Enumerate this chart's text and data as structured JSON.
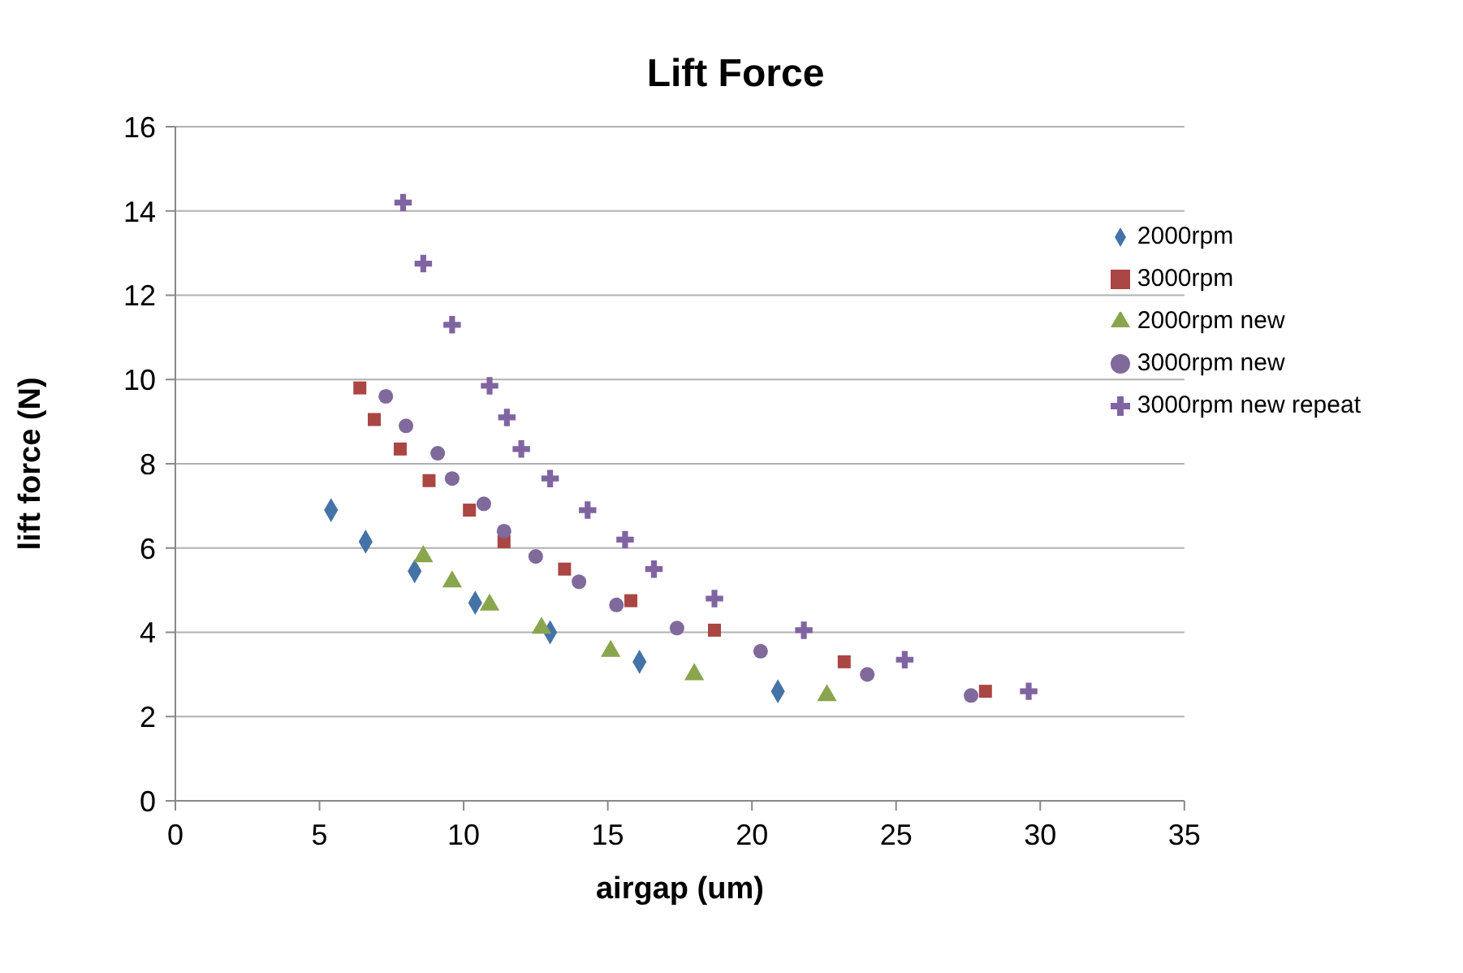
{
  "chart_data": {
    "type": "scatter",
    "title": "Lift Force",
    "xlabel": "airgap (um)",
    "ylabel": "lift force (N)",
    "xlim": [
      0,
      35
    ],
    "xticks": [
      0,
      5,
      10,
      15,
      20,
      25,
      30,
      35
    ],
    "ylim": [
      0,
      16
    ],
    "yticks": [
      0,
      2,
      4,
      6,
      8,
      10,
      12,
      14,
      16
    ],
    "grid": "y",
    "legend": "top right",
    "series": [
      {
        "name": "2000rpm",
        "color": "#4572a7",
        "marker": "diamond",
        "x": [
          5.4,
          6.6,
          8.3,
          10.4,
          13.0,
          16.1,
          20.9
        ],
        "values": [
          6.9,
          6.15,
          5.45,
          4.7,
          4.0,
          3.3,
          2.6
        ]
      },
      {
        "name": "3000rpm",
        "color": "#aa4643",
        "marker": "square",
        "x": [
          6.4,
          6.9,
          7.8,
          8.8,
          10.2,
          11.4,
          13.5,
          15.8,
          18.7,
          23.2,
          28.1
        ],
        "values": [
          9.8,
          9.05,
          8.35,
          7.6,
          6.9,
          6.15,
          5.5,
          4.75,
          4.05,
          3.3,
          2.6
        ]
      },
      {
        "name": "2000rpm new",
        "color": "#89a54e",
        "marker": "triangle",
        "x": [
          8.6,
          9.6,
          10.9,
          12.7,
          15.1,
          18.0,
          22.6
        ],
        "values": [
          5.8,
          5.2,
          4.65,
          4.1,
          3.55,
          3.0,
          2.5
        ]
      },
      {
        "name": "3000rpm new",
        "color": "#80699b",
        "marker": "circle",
        "x": [
          7.3,
          8.0,
          9.1,
          9.6,
          10.7,
          11.4,
          12.5,
          14.0,
          15.3,
          17.4,
          20.3,
          24.0,
          27.6
        ],
        "values": [
          9.6,
          8.9,
          8.25,
          7.65,
          7.05,
          6.4,
          5.8,
          5.2,
          4.65,
          4.1,
          3.55,
          3.0,
          2.5
        ]
      },
      {
        "name": "3000rpm new repeat",
        "color": "#8064a2",
        "marker": "cross",
        "x": [
          7.9,
          8.6,
          9.6,
          10.9,
          11.5,
          12.0,
          13.0,
          14.3,
          15.6,
          16.6,
          18.7,
          21.8,
          25.3,
          29.6
        ],
        "values": [
          14.2,
          12.75,
          11.3,
          9.85,
          9.1,
          8.35,
          7.65,
          6.9,
          6.2,
          5.5,
          4.8,
          4.05,
          3.35,
          2.6
        ]
      }
    ]
  }
}
